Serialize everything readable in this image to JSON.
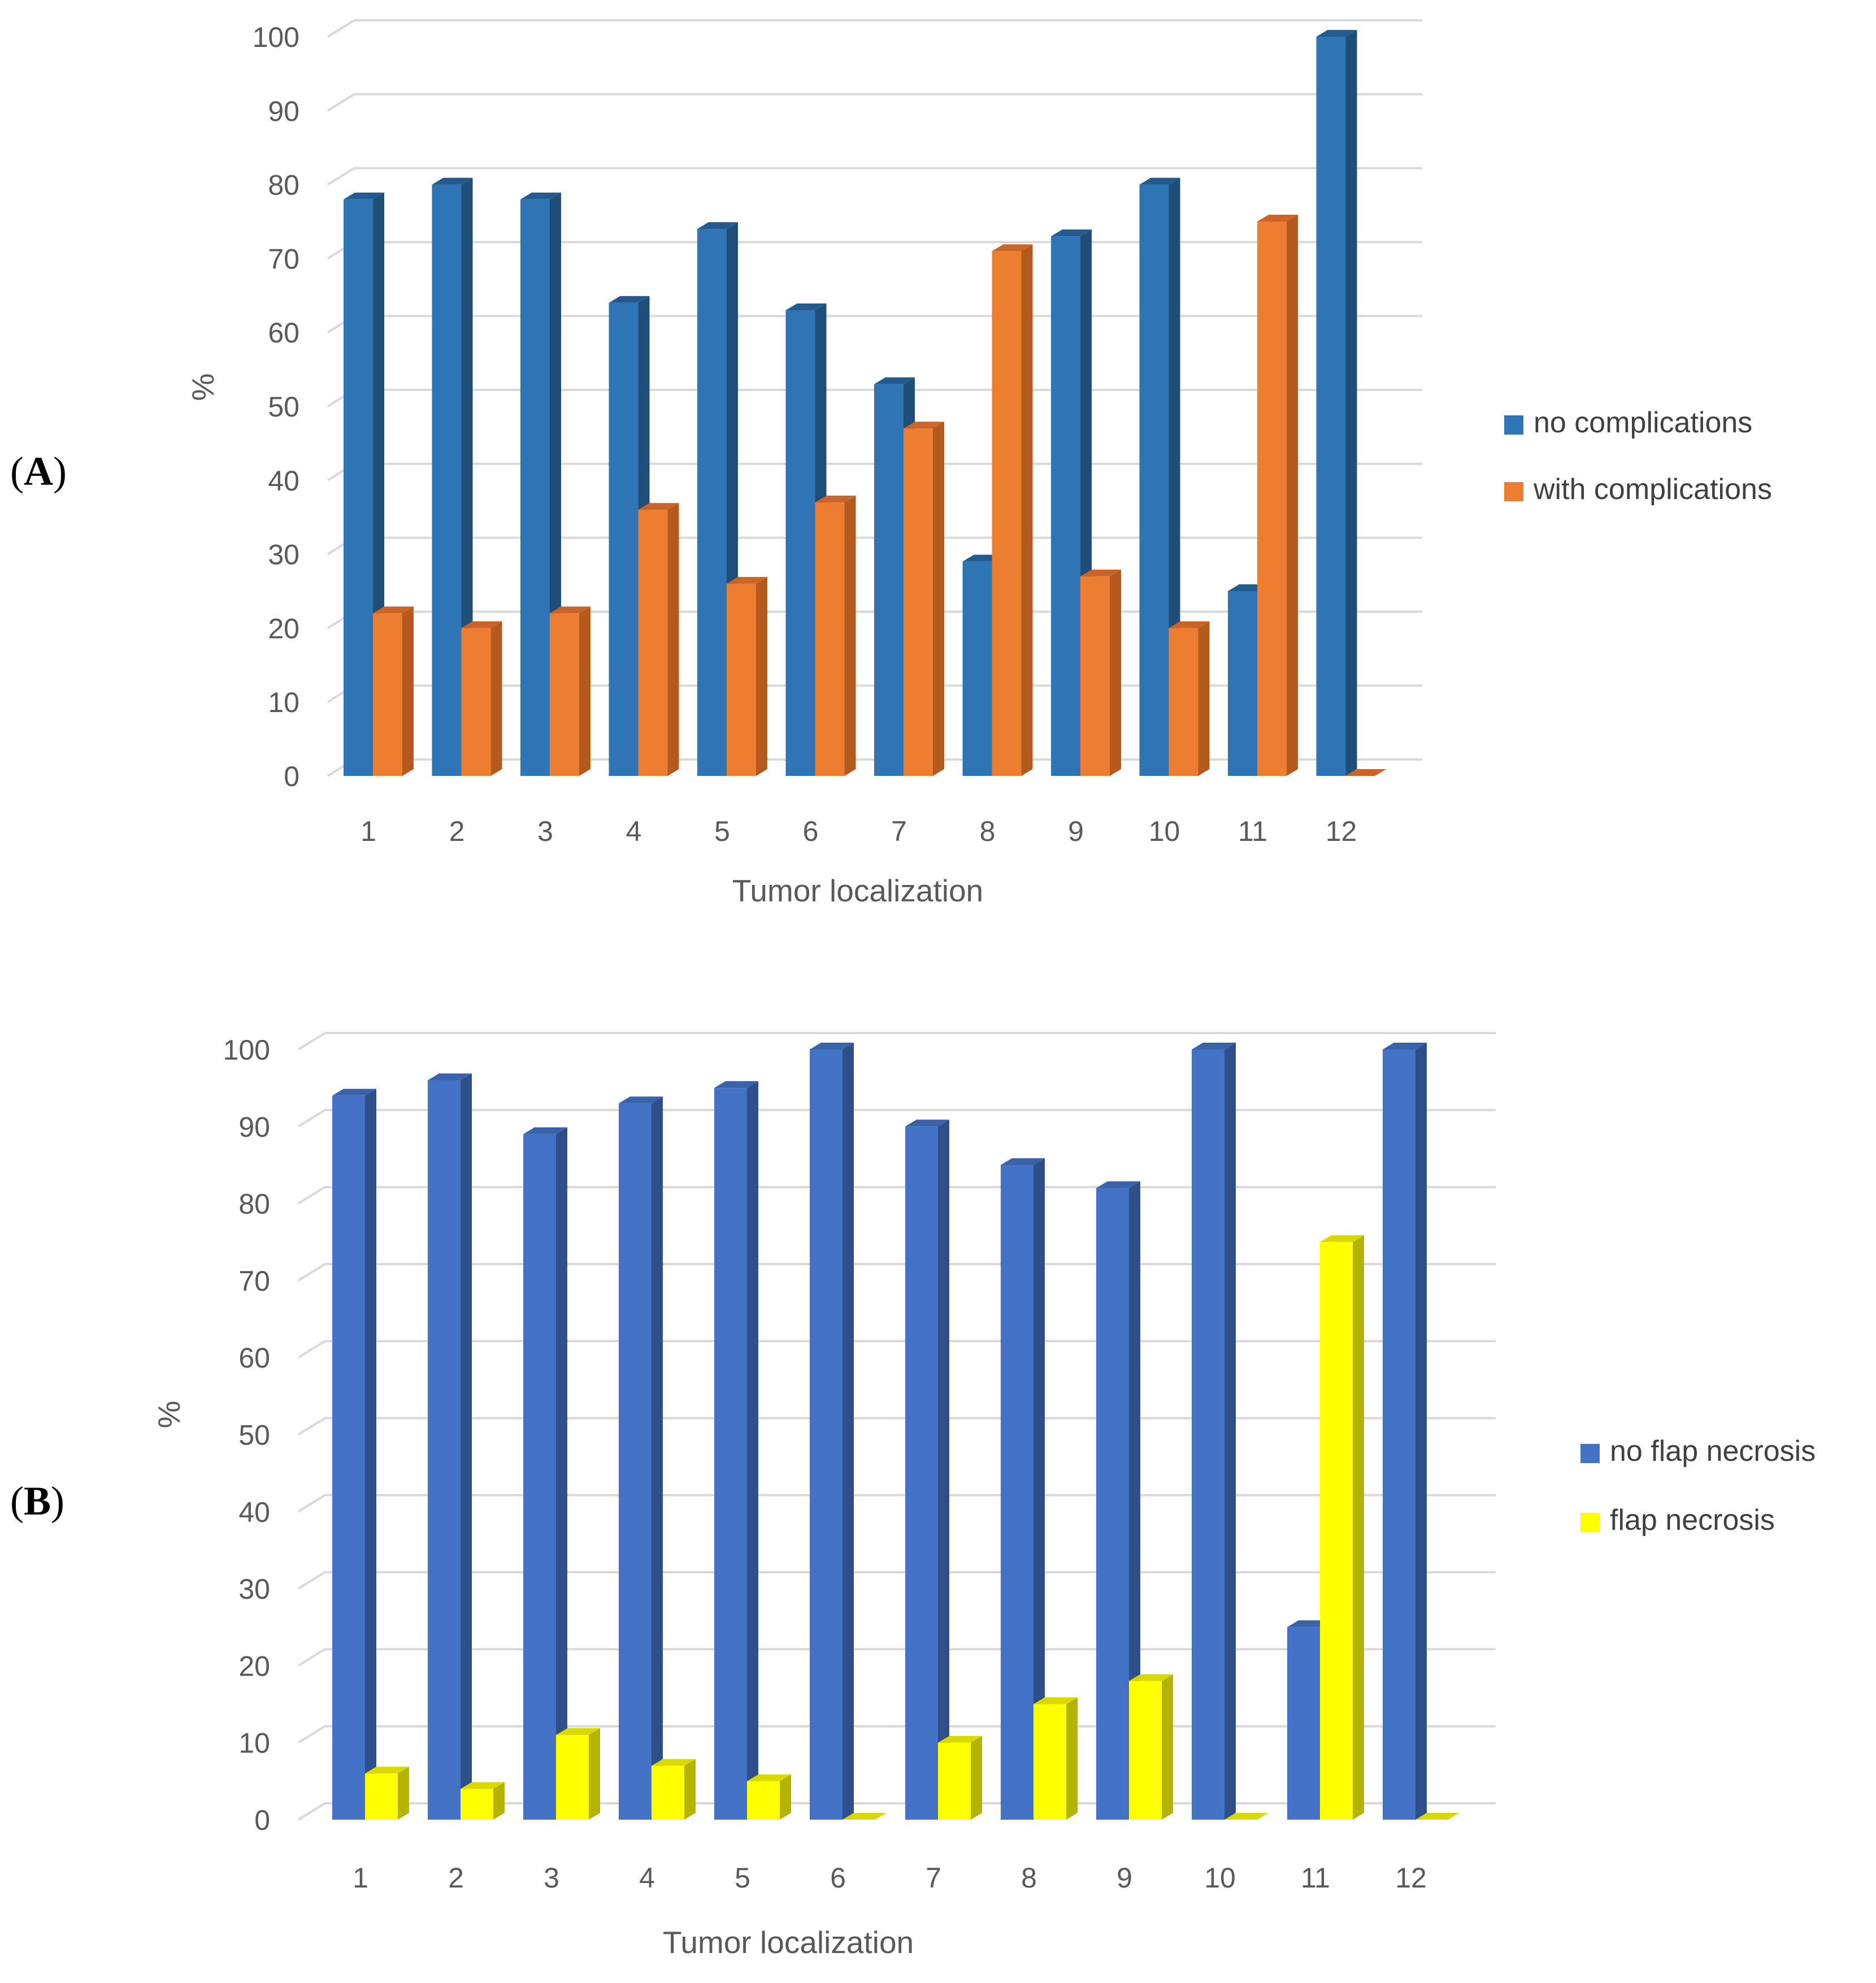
{
  "figure": {
    "panels": [
      {
        "label_open": "(",
        "label_letter": "A",
        "label_close": ")"
      },
      {
        "label_open": "(",
        "label_letter": "B",
        "label_close": ")"
      }
    ]
  },
  "chart_data": [
    {
      "type": "bar",
      "style": "3d-clustered-column",
      "title": "",
      "xlabel": "Tumor localization",
      "ylabel": "%",
      "ylim": [
        0,
        100
      ],
      "yticks": [
        "0",
        "10",
        "20",
        "30",
        "40",
        "50",
        "60",
        "70",
        "80",
        "90",
        "100"
      ],
      "grid": true,
      "legend_position": "right",
      "categories": [
        "1",
        "2",
        "3",
        "4",
        "5",
        "6",
        "7",
        "8",
        "9",
        "10",
        "11",
        "12"
      ],
      "series": [
        {
          "name": "no complications",
          "color": "#2E75B6",
          "side_color": "#1F4E79",
          "top_color": "#245A8D",
          "values": [
            78,
            80,
            78,
            64,
            74,
            63,
            53,
            29,
            73,
            80,
            25,
            100
          ]
        },
        {
          "name": "with complications",
          "color": "#ED7D31",
          "side_color": "#B55A1E",
          "top_color": "#C9652A",
          "values": [
            22,
            20,
            22,
            36,
            26,
            37,
            47,
            71,
            27,
            20,
            75,
            0
          ]
        }
      ]
    },
    {
      "type": "bar",
      "style": "3d-clustered-column",
      "title": "",
      "xlabel": "Tumor localization",
      "ylabel": "%",
      "ylim": [
        0,
        100
      ],
      "yticks": [
        "0",
        "10",
        "20",
        "30",
        "40",
        "50",
        "60",
        "70",
        "80",
        "90",
        "100"
      ],
      "grid": true,
      "legend_position": "right",
      "categories": [
        "1",
        "2",
        "3",
        "4",
        "5",
        "6",
        "7",
        "8",
        "9",
        "10",
        "11",
        "12"
      ],
      "series": [
        {
          "name": "no flap necrosis",
          "color": "#4472C4",
          "side_color": "#2F4F8A",
          "top_color": "#3A62A8",
          "values": [
            94,
            96,
            89,
            93,
            95,
            100,
            90,
            85,
            82,
            100,
            25,
            100
          ]
        },
        {
          "name": "flap necrosis",
          "color": "#FFFF00",
          "side_color": "#B3B300",
          "top_color": "#D9D900",
          "values": [
            6,
            4,
            11,
            7,
            5,
            0,
            10,
            15,
            18,
            0,
            75,
            0
          ]
        }
      ]
    }
  ]
}
